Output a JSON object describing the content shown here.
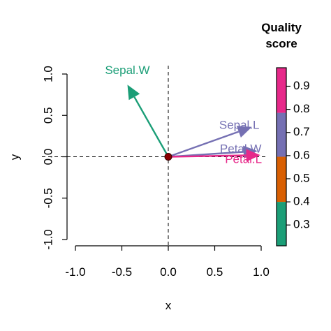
{
  "chart_data": {
    "type": "scatter",
    "subtype": "biplot-vectors",
    "xlabel": "x",
    "ylabel": "y",
    "xlim": [
      -1.0,
      1.0
    ],
    "ylim": [
      -1.0,
      1.0
    ],
    "x_ticks": [
      "-1.0",
      "-0.5",
      "0.0",
      "0.5",
      "1.0"
    ],
    "y_ticks": [
      "-1.0",
      "-0.5",
      "0.0",
      "0.5",
      "1.0"
    ],
    "x_tick_values": [
      -1.0,
      -0.5,
      0.0,
      0.5,
      1.0
    ],
    "y_tick_values": [
      -1.0,
      -0.5,
      0.0,
      0.5,
      1.0
    ],
    "reference_lines": {
      "x0": true,
      "y0": true,
      "style": "dashed"
    },
    "grid": false,
    "origin_point": {
      "x": 0.0,
      "y": 0.0,
      "color": "#8B0000"
    },
    "vectors": [
      {
        "label": "Sepal.W",
        "x": -0.44,
        "y": 0.87,
        "quality": 0.28,
        "color": "#1B9E77"
      },
      {
        "label": "Sepal.L",
        "x": 0.9,
        "y": 0.36,
        "quality": 0.69,
        "color": "#7570B3"
      },
      {
        "label": "Petal.W",
        "x": 0.96,
        "y": 0.07,
        "quality": 0.72,
        "color": "#7570B3"
      },
      {
        "label": "Petal.L",
        "x": 0.99,
        "y": 0.02,
        "quality": 0.98,
        "color": "#E7298A"
      }
    ],
    "colorbar": {
      "title_lines": [
        "Quality",
        "score"
      ],
      "ticks": [
        "0.3",
        "0.4",
        "0.5",
        "0.6",
        "0.7",
        "0.8",
        "0.9"
      ],
      "tick_values": [
        0.3,
        0.4,
        0.5,
        0.6,
        0.7,
        0.8,
        0.9
      ],
      "range": [
        0.21,
        0.98
      ],
      "segments": [
        {
          "from": 0.21,
          "to": 0.4,
          "color": "#1B9E77"
        },
        {
          "from": 0.4,
          "to": 0.595,
          "color": "#D95F02"
        },
        {
          "from": 0.595,
          "to": 0.785,
          "color": "#7570B3"
        },
        {
          "from": 0.785,
          "to": 0.98,
          "color": "#E7298A"
        }
      ],
      "placement": "right"
    }
  }
}
